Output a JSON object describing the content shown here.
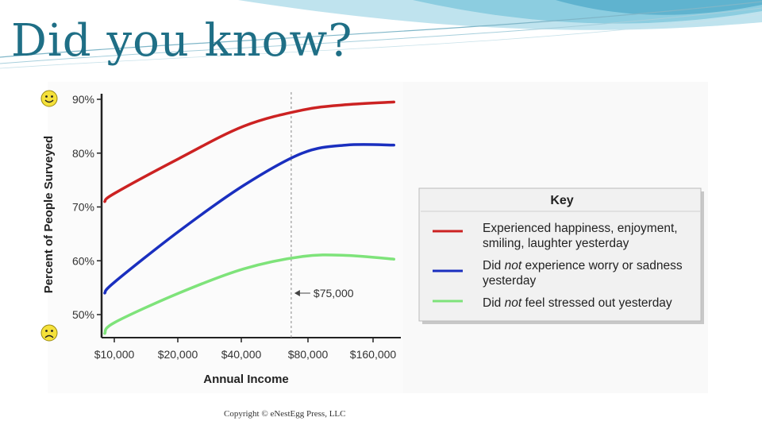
{
  "slide": {
    "title": "Did you know?",
    "copyright": "Copyright © eNestEgg Press, LLC"
  },
  "colors": {
    "title": "#1f6f86",
    "happiness": "#cc2222",
    "worry": "#1a2fbf",
    "stress": "#7ee37a",
    "threshold": "#888888"
  },
  "icons": {
    "top": "smiley-face-icon",
    "bottom": "frowning-face-icon"
  },
  "chart_data": {
    "type": "line",
    "xlabel": "Annual Income",
    "ylabel": "Percent of People Surveyed",
    "x_ticks": [
      "$10,000",
      "$20,000",
      "$40,000",
      "$80,000",
      "$160,000"
    ],
    "y_ticks": [
      "50%",
      "60%",
      "70%",
      "80%",
      "90%"
    ],
    "ylim": [
      47,
      92
    ],
    "threshold": {
      "x": 75000,
      "label": "$75,000"
    },
    "legend_title": "Key",
    "legend_position": "right",
    "series": [
      {
        "name_lines": [
          "Experienced happiness, enjoyment,",
          "smiling, laughter yesterday"
        ],
        "color": "#cc2222",
        "x": [
          8000,
          10000,
          20000,
          40000,
          75000,
          120000,
          200000
        ],
        "y": [
          71,
          72.5,
          79,
          85,
          88,
          89,
          89.5
        ]
      },
      {
        "name_lines": [
          "Did not experience worry or sadness",
          "yesterday"
        ],
        "italic_word": "not",
        "color": "#1a2fbf",
        "x": [
          8000,
          10000,
          20000,
          40000,
          75000,
          120000,
          200000
        ],
        "y": [
          54,
          56,
          65.5,
          74,
          80,
          81.5,
          81.5
        ]
      },
      {
        "name_lines": [
          "Did not feel stressed out yesterday"
        ],
        "italic_word": "not",
        "color": "#7ee37a",
        "x": [
          8000,
          10000,
          20000,
          40000,
          75000,
          120000,
          200000
        ],
        "y": [
          46.5,
          48.5,
          54,
          58.5,
          60.8,
          61,
          60.3
        ]
      }
    ]
  }
}
